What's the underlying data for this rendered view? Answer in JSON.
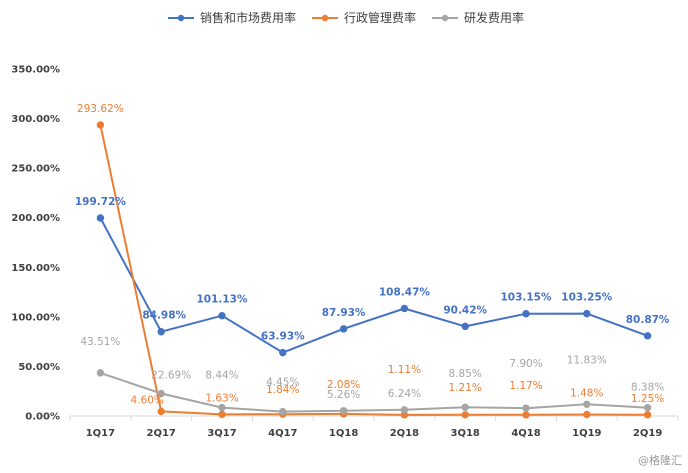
{
  "chart_data": {
    "type": "line",
    "categories": [
      "1Q17",
      "2Q17",
      "3Q17",
      "4Q17",
      "1Q18",
      "2Q18",
      "3Q18",
      "4Q18",
      "1Q19",
      "2Q19"
    ],
    "ylim": [
      0,
      350
    ],
    "yticks": [
      "0.00%",
      "50.00%",
      "100.00%",
      "150.00%",
      "200.00%",
      "250.00%",
      "300.00%",
      "350.00%"
    ],
    "grid": false,
    "legend_position": "top",
    "series": [
      {
        "name": "销售和市场费用率",
        "color": "#4472C4",
        "values": [
          199.72,
          84.98,
          101.13,
          63.93,
          87.93,
          108.47,
          90.42,
          103.15,
          103.25,
          80.87
        ],
        "labels": [
          "199.72%",
          "84.98%",
          "101.13%",
          "63.93%",
          "87.93%",
          "108.47%",
          "90.42%",
          "103.15%",
          "103.25%",
          "80.87%"
        ]
      },
      {
        "name": "行政管理费率",
        "color": "#ED7D31",
        "values": [
          293.62,
          4.6,
          1.63,
          1.84,
          2.08,
          1.11,
          1.21,
          1.17,
          1.48,
          1.25
        ],
        "labels": [
          "293.62%",
          "4.60%",
          "1.63%",
          "1.84%",
          "2.08%",
          "1.11%",
          "1.21%",
          "1.17%",
          "1.48%",
          "1.25%"
        ]
      },
      {
        "name": "研发费用率",
        "color": "#A5A5A5",
        "values": [
          43.51,
          22.69,
          8.44,
          4.45,
          5.26,
          6.24,
          8.85,
          7.9,
          11.83,
          8.38
        ],
        "labels": [
          "43.51%",
          "22.69%",
          "8.44%",
          "4.45%",
          "5.26%",
          "6.24%",
          "8.85%",
          "7.90%",
          "11.83%",
          "8.38%"
        ]
      }
    ]
  },
  "watermark": "@格隆汇"
}
